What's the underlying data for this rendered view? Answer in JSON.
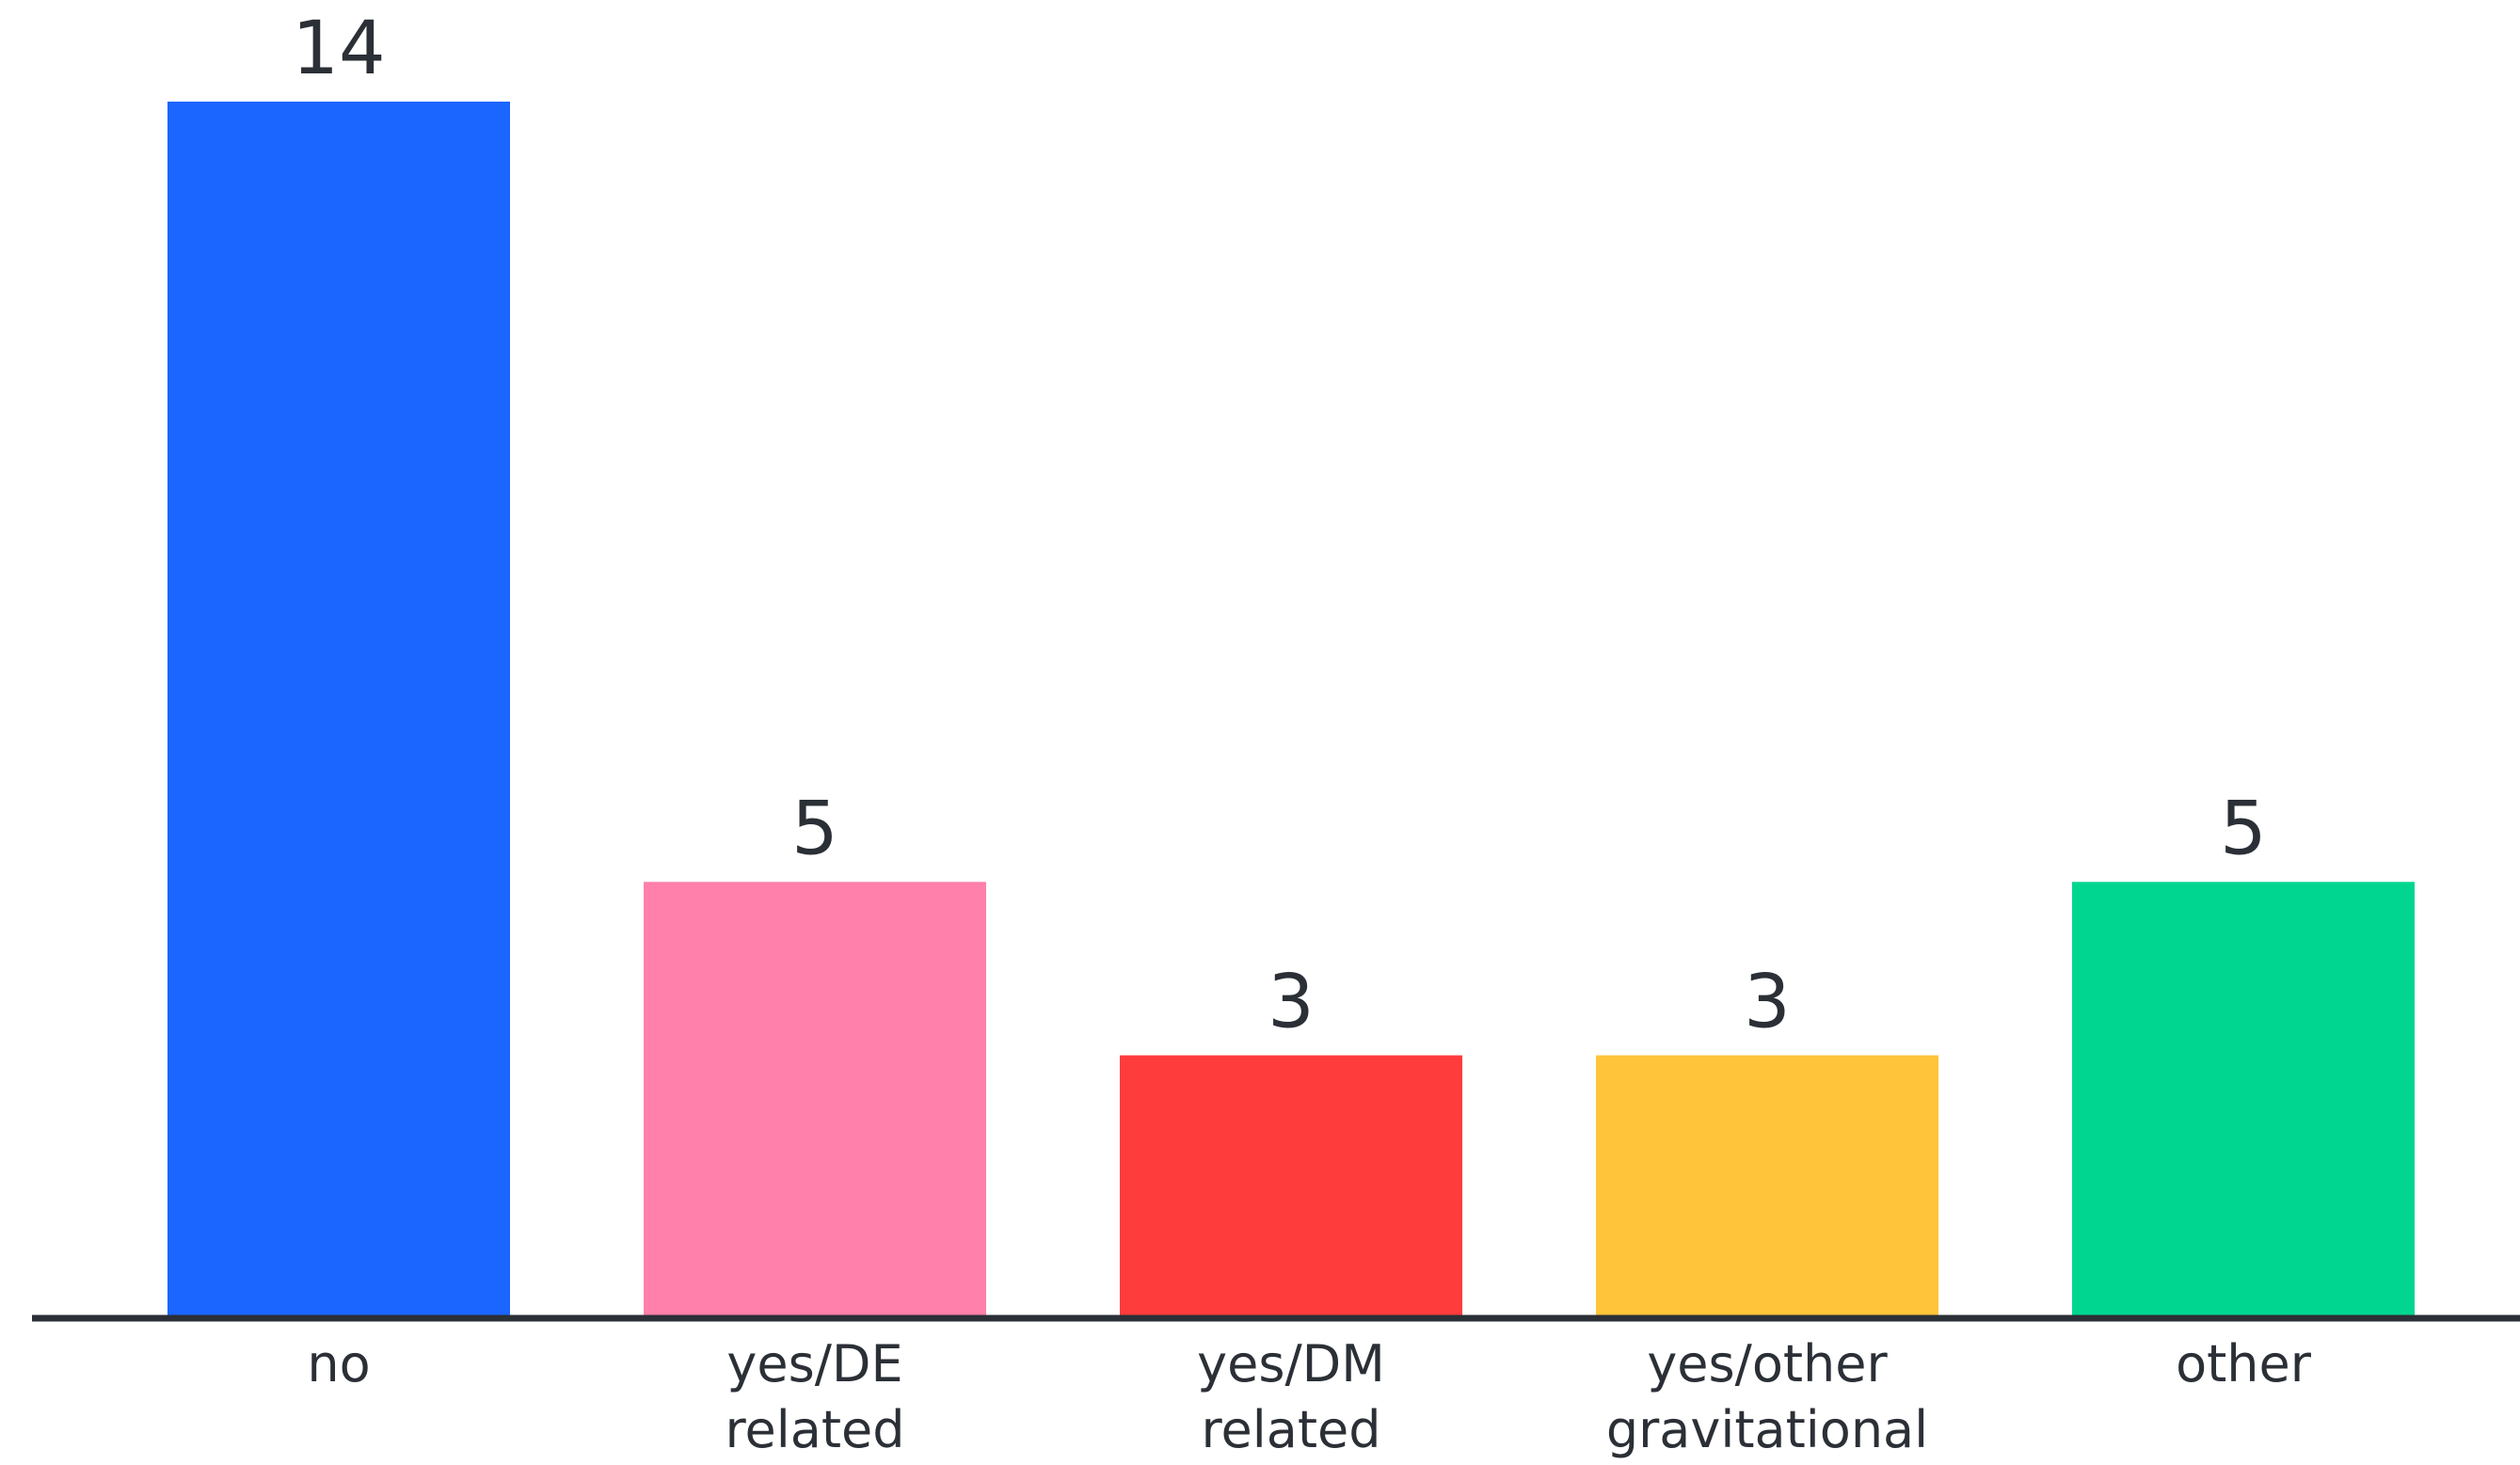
{
  "chart_data": {
    "type": "bar",
    "categories": [
      "no",
      "yes/DE\nrelated",
      "yes/DM\nrelated",
      "yes/other\ngravitational",
      "other"
    ],
    "values": [
      14,
      5,
      3,
      3,
      5
    ],
    "colors": [
      "#1b66ff",
      "#ff80aa",
      "#ff3c3c",
      "#ffc43a",
      "#00d68f"
    ],
    "ylim": [
      0,
      14
    ]
  }
}
